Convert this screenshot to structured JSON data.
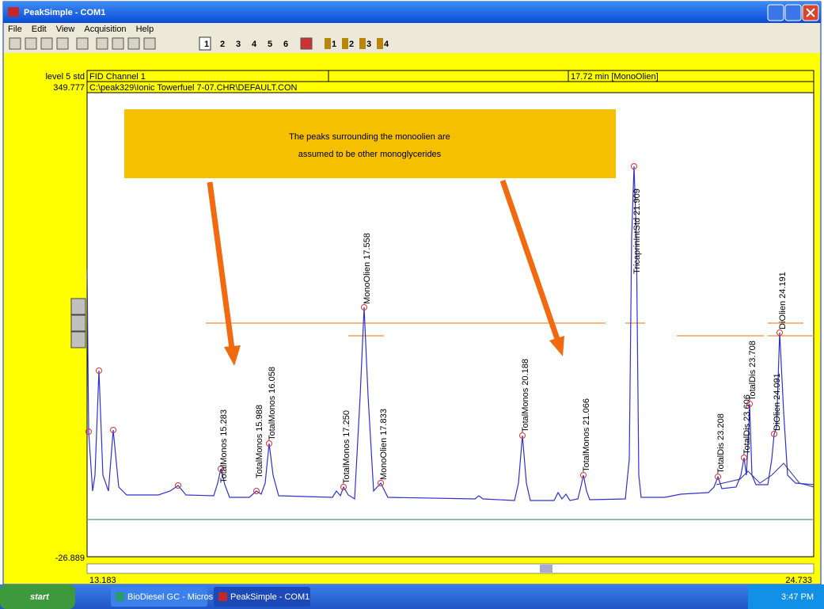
{
  "window": {
    "title": "PeakSimple - COM1"
  },
  "menu": [
    "File",
    "Edit",
    "View",
    "Acquisition",
    "Help"
  ],
  "toolbar": {
    "channels": [
      "1",
      "2",
      "3",
      "4",
      "5",
      "6"
    ],
    "sample_buttons": [
      "1",
      "2",
      "3",
      "4"
    ]
  },
  "header": {
    "method": "level 5 std",
    "channel": "FID Channel 1",
    "retention": "17.72 min [MonoOlien]",
    "y_max": "349.777",
    "file": "C:\\peak329\\Ionic Towerfuel 7-07.CHR\\DEFAULT.CON",
    "y_min": "-26.889",
    "x_min": "13.183",
    "x_max": "24.733"
  },
  "callout": {
    "lines": [
      "The peaks surrounding the monoolien are",
      "assumed to be other monoglycerides"
    ]
  },
  "peaks": [
    {
      "label": "TotalMonos 15.283"
    },
    {
      "label": "TotalMonos 15.988"
    },
    {
      "label": "TotalMonos 16.058"
    },
    {
      "label": "TotalMonos 17.250"
    },
    {
      "label": "MonoOlien 17.558"
    },
    {
      "label": "MonoOlien 17.833"
    },
    {
      "label": "TotalMonos 20.188"
    },
    {
      "label": "TotalMonos 21.066"
    },
    {
      "label": "TricaprinIntStd 21.909"
    },
    {
      "label": "TotalDis 23.208"
    },
    {
      "label": "TotalDis 23.606"
    },
    {
      "label": "TotalDis 23.708"
    },
    {
      "label": "DiOlien 24.091"
    },
    {
      "label": "DiOlien 24.191"
    }
  ],
  "taskbar": {
    "start": "start",
    "items": [
      "BioDiesel GC - Micros...",
      "PeakSimple - COM1"
    ],
    "clock": "3:47 PM"
  }
}
